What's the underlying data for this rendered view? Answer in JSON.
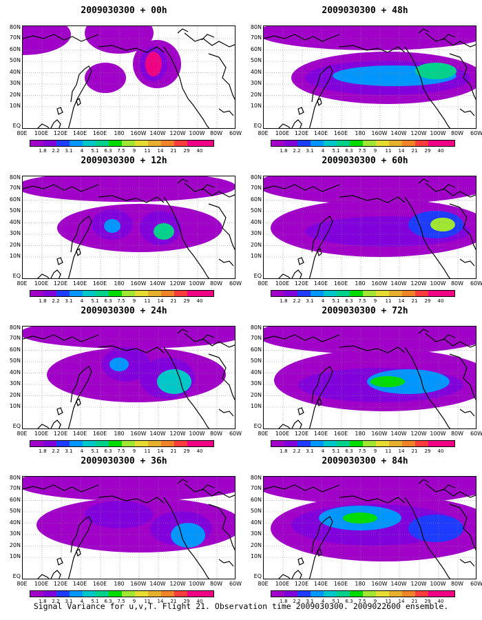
{
  "panels": [
    {
      "id": "00h",
      "title": "2009030300 + 00h"
    },
    {
      "id": "48h",
      "title": "2009030300 + 48h"
    },
    {
      "id": "12h",
      "title": "2009030300 + 12h"
    },
    {
      "id": "60h",
      "title": "2009030300 + 60h"
    },
    {
      "id": "24h",
      "title": "2009030300 + 24h"
    },
    {
      "id": "72h",
      "title": "2009030300 + 72h"
    },
    {
      "id": "36h",
      "title": "2009030300 + 36h"
    },
    {
      "id": "84h",
      "title": "2009030300 + 84h"
    }
  ],
  "lat_labels": [
    "80N",
    "70N",
    "60N",
    "50N",
    "40N",
    "30N",
    "20N",
    "10N",
    "EQ"
  ],
  "lon_labels": [
    "80E",
    "100E",
    "120E",
    "140E",
    "160E",
    "180",
    "160W",
    "140W",
    "120W",
    "100W",
    "80W",
    "60W"
  ],
  "colorbar": {
    "labels": [
      "1.8",
      "2.2",
      "3.1",
      "4",
      "5.1",
      "6.3",
      "7.5",
      "9",
      "11",
      "14",
      "21",
      "29",
      "40"
    ],
    "colors": [
      "#a000c8",
      "#8200dc",
      "#1e3cff",
      "#0096ff",
      "#00c8c8",
      "#00d28c",
      "#00dc00",
      "#a0e632",
      "#e6dc32",
      "#e6af2d",
      "#f08228",
      "#fa3c3c",
      "#f00082"
    ]
  },
  "caption": "Signal Variance for u,v,T. Flight 21. Observation time 2009030300. 2009022600 ensemble."
}
